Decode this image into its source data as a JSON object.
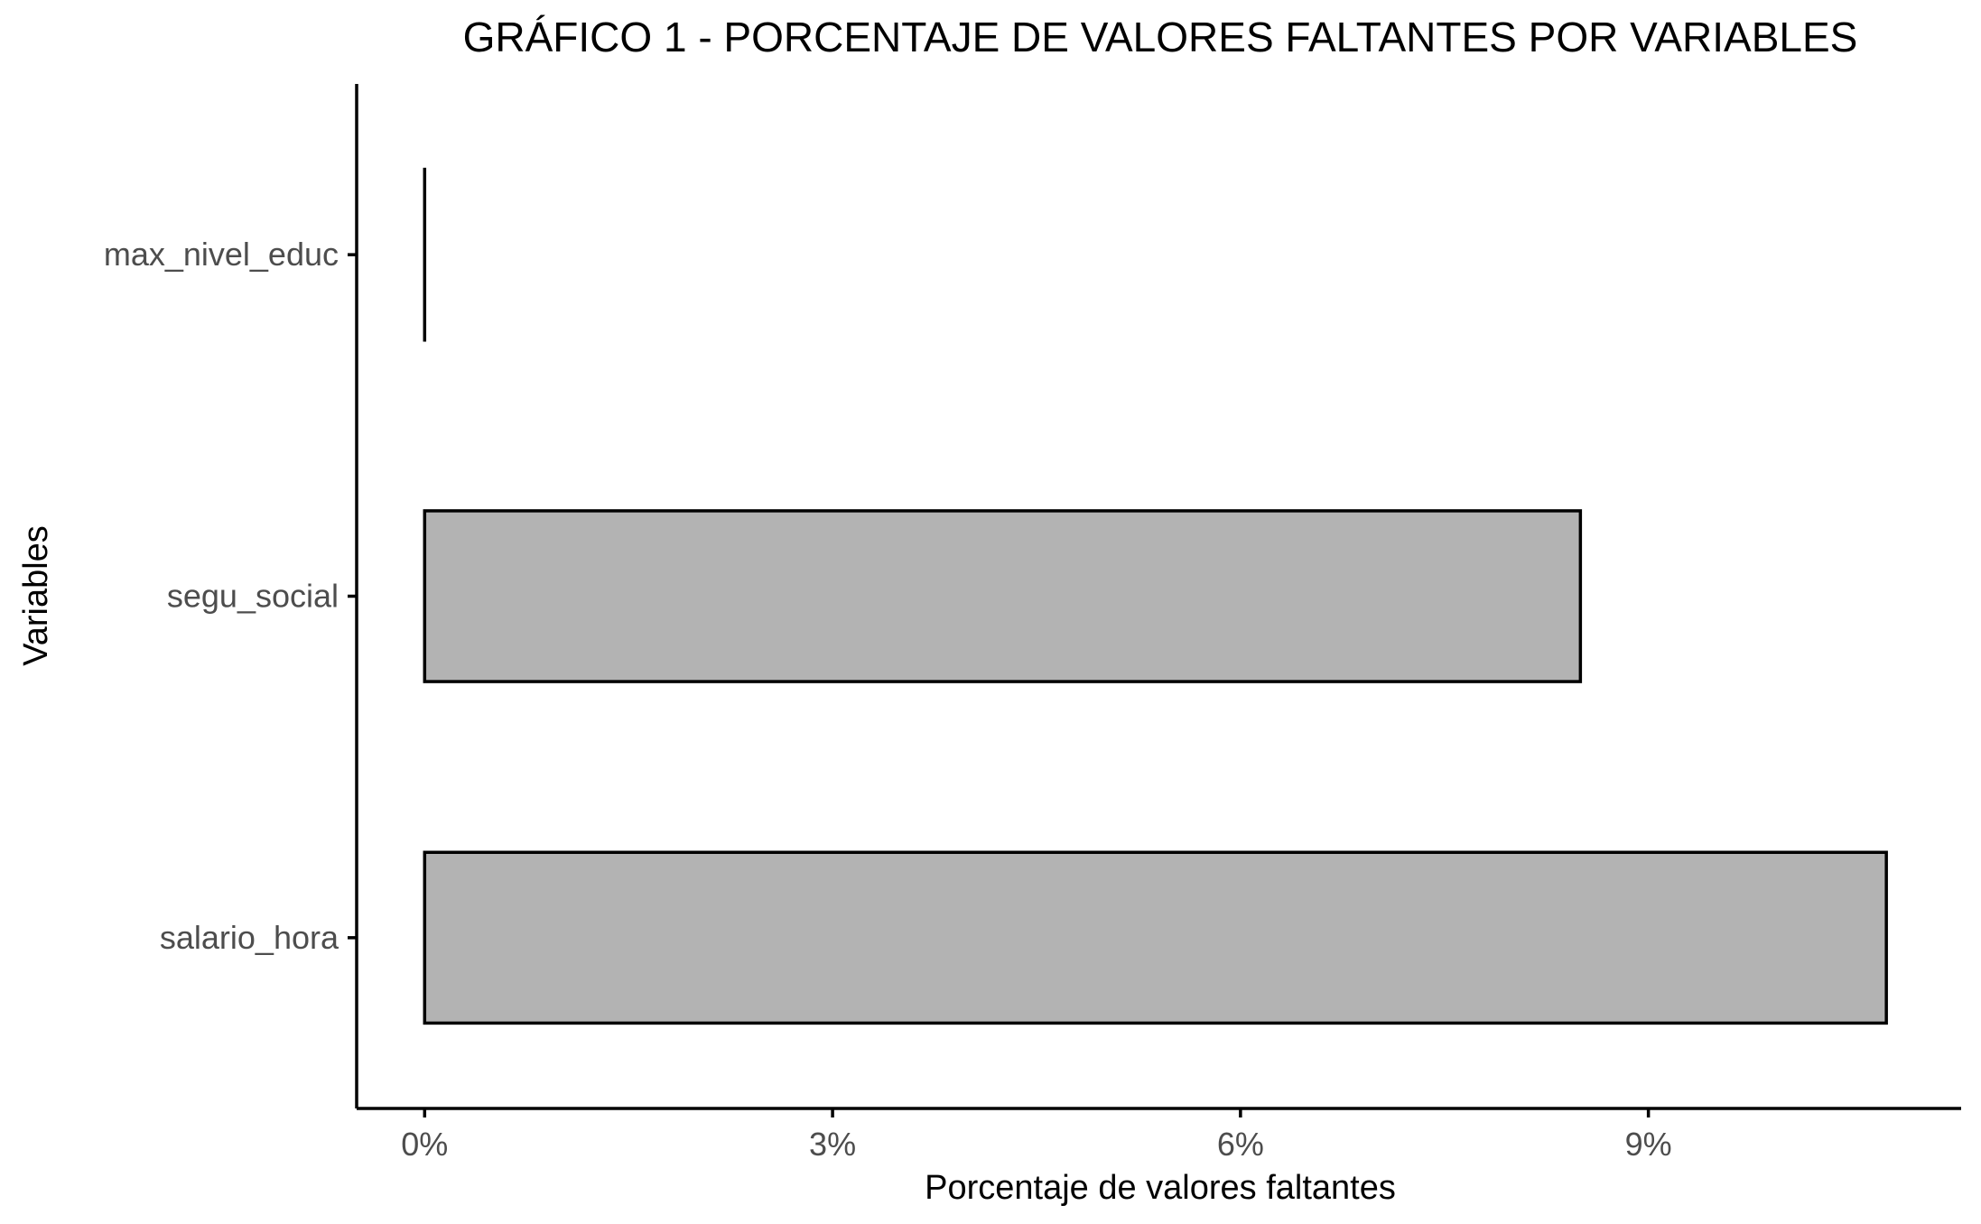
{
  "chart_data": {
    "type": "bar",
    "orientation": "horizontal",
    "title": "GRÁFICO 1 - PORCENTAJE DE VALORES FALTANTES POR VARIABLES",
    "xlabel": "Porcentaje de valores faltantes",
    "ylabel": "Variables",
    "categories": [
      "max_nivel_educ",
      "segu_social",
      "salario_hora"
    ],
    "values": [
      0.0,
      8.5,
      10.75
    ],
    "value_unit": "%",
    "xlim": [
      -0.5,
      11.3
    ],
    "x_ticks": [
      0,
      3,
      6,
      9
    ],
    "x_tick_labels": [
      "0%",
      "3%",
      "6%",
      "9%"
    ],
    "grid": false,
    "legend": "none",
    "colors": {
      "bar_fill": "#b3b3b3",
      "bar_stroke": "#000000",
      "axis": "#000000",
      "tick_text": "#4d4d4d",
      "background": "#ffffff"
    }
  }
}
